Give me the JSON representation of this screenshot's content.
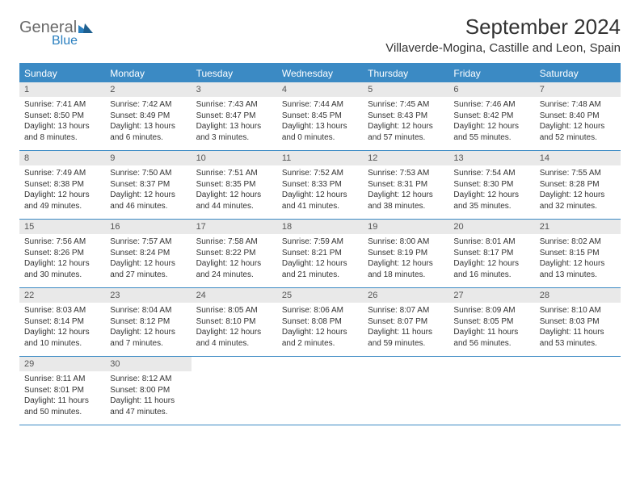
{
  "logo": {
    "text1": "General",
    "text2": "Blue"
  },
  "title": "September 2024",
  "location": "Villaverde-Mogina, Castille and Leon, Spain",
  "day_headers": [
    "Sunday",
    "Monday",
    "Tuesday",
    "Wednesday",
    "Thursday",
    "Friday",
    "Saturday"
  ],
  "colors": {
    "accent": "#3b8ac4",
    "header_text": "#ffffff",
    "daynum_bg": "#e9e9e9",
    "text": "#333333",
    "logo_gray": "#6a6a6a",
    "logo_blue": "#2a7fbf"
  },
  "weeks": [
    [
      {
        "n": "1",
        "sunrise": "Sunrise: 7:41 AM",
        "sunset": "Sunset: 8:50 PM",
        "d1": "Daylight: 13 hours",
        "d2": "and 8 minutes."
      },
      {
        "n": "2",
        "sunrise": "Sunrise: 7:42 AM",
        "sunset": "Sunset: 8:49 PM",
        "d1": "Daylight: 13 hours",
        "d2": "and 6 minutes."
      },
      {
        "n": "3",
        "sunrise": "Sunrise: 7:43 AM",
        "sunset": "Sunset: 8:47 PM",
        "d1": "Daylight: 13 hours",
        "d2": "and 3 minutes."
      },
      {
        "n": "4",
        "sunrise": "Sunrise: 7:44 AM",
        "sunset": "Sunset: 8:45 PM",
        "d1": "Daylight: 13 hours",
        "d2": "and 0 minutes."
      },
      {
        "n": "5",
        "sunrise": "Sunrise: 7:45 AM",
        "sunset": "Sunset: 8:43 PM",
        "d1": "Daylight: 12 hours",
        "d2": "and 57 minutes."
      },
      {
        "n": "6",
        "sunrise": "Sunrise: 7:46 AM",
        "sunset": "Sunset: 8:42 PM",
        "d1": "Daylight: 12 hours",
        "d2": "and 55 minutes."
      },
      {
        "n": "7",
        "sunrise": "Sunrise: 7:48 AM",
        "sunset": "Sunset: 8:40 PM",
        "d1": "Daylight: 12 hours",
        "d2": "and 52 minutes."
      }
    ],
    [
      {
        "n": "8",
        "sunrise": "Sunrise: 7:49 AM",
        "sunset": "Sunset: 8:38 PM",
        "d1": "Daylight: 12 hours",
        "d2": "and 49 minutes."
      },
      {
        "n": "9",
        "sunrise": "Sunrise: 7:50 AM",
        "sunset": "Sunset: 8:37 PM",
        "d1": "Daylight: 12 hours",
        "d2": "and 46 minutes."
      },
      {
        "n": "10",
        "sunrise": "Sunrise: 7:51 AM",
        "sunset": "Sunset: 8:35 PM",
        "d1": "Daylight: 12 hours",
        "d2": "and 44 minutes."
      },
      {
        "n": "11",
        "sunrise": "Sunrise: 7:52 AM",
        "sunset": "Sunset: 8:33 PM",
        "d1": "Daylight: 12 hours",
        "d2": "and 41 minutes."
      },
      {
        "n": "12",
        "sunrise": "Sunrise: 7:53 AM",
        "sunset": "Sunset: 8:31 PM",
        "d1": "Daylight: 12 hours",
        "d2": "and 38 minutes."
      },
      {
        "n": "13",
        "sunrise": "Sunrise: 7:54 AM",
        "sunset": "Sunset: 8:30 PM",
        "d1": "Daylight: 12 hours",
        "d2": "and 35 minutes."
      },
      {
        "n": "14",
        "sunrise": "Sunrise: 7:55 AM",
        "sunset": "Sunset: 8:28 PM",
        "d1": "Daylight: 12 hours",
        "d2": "and 32 minutes."
      }
    ],
    [
      {
        "n": "15",
        "sunrise": "Sunrise: 7:56 AM",
        "sunset": "Sunset: 8:26 PM",
        "d1": "Daylight: 12 hours",
        "d2": "and 30 minutes."
      },
      {
        "n": "16",
        "sunrise": "Sunrise: 7:57 AM",
        "sunset": "Sunset: 8:24 PM",
        "d1": "Daylight: 12 hours",
        "d2": "and 27 minutes."
      },
      {
        "n": "17",
        "sunrise": "Sunrise: 7:58 AM",
        "sunset": "Sunset: 8:22 PM",
        "d1": "Daylight: 12 hours",
        "d2": "and 24 minutes."
      },
      {
        "n": "18",
        "sunrise": "Sunrise: 7:59 AM",
        "sunset": "Sunset: 8:21 PM",
        "d1": "Daylight: 12 hours",
        "d2": "and 21 minutes."
      },
      {
        "n": "19",
        "sunrise": "Sunrise: 8:00 AM",
        "sunset": "Sunset: 8:19 PM",
        "d1": "Daylight: 12 hours",
        "d2": "and 18 minutes."
      },
      {
        "n": "20",
        "sunrise": "Sunrise: 8:01 AM",
        "sunset": "Sunset: 8:17 PM",
        "d1": "Daylight: 12 hours",
        "d2": "and 16 minutes."
      },
      {
        "n": "21",
        "sunrise": "Sunrise: 8:02 AM",
        "sunset": "Sunset: 8:15 PM",
        "d1": "Daylight: 12 hours",
        "d2": "and 13 minutes."
      }
    ],
    [
      {
        "n": "22",
        "sunrise": "Sunrise: 8:03 AM",
        "sunset": "Sunset: 8:14 PM",
        "d1": "Daylight: 12 hours",
        "d2": "and 10 minutes."
      },
      {
        "n": "23",
        "sunrise": "Sunrise: 8:04 AM",
        "sunset": "Sunset: 8:12 PM",
        "d1": "Daylight: 12 hours",
        "d2": "and 7 minutes."
      },
      {
        "n": "24",
        "sunrise": "Sunrise: 8:05 AM",
        "sunset": "Sunset: 8:10 PM",
        "d1": "Daylight: 12 hours",
        "d2": "and 4 minutes."
      },
      {
        "n": "25",
        "sunrise": "Sunrise: 8:06 AM",
        "sunset": "Sunset: 8:08 PM",
        "d1": "Daylight: 12 hours",
        "d2": "and 2 minutes."
      },
      {
        "n": "26",
        "sunrise": "Sunrise: 8:07 AM",
        "sunset": "Sunset: 8:07 PM",
        "d1": "Daylight: 11 hours",
        "d2": "and 59 minutes."
      },
      {
        "n": "27",
        "sunrise": "Sunrise: 8:09 AM",
        "sunset": "Sunset: 8:05 PM",
        "d1": "Daylight: 11 hours",
        "d2": "and 56 minutes."
      },
      {
        "n": "28",
        "sunrise": "Sunrise: 8:10 AM",
        "sunset": "Sunset: 8:03 PM",
        "d1": "Daylight: 11 hours",
        "d2": "and 53 minutes."
      }
    ],
    [
      {
        "n": "29",
        "sunrise": "Sunrise: 8:11 AM",
        "sunset": "Sunset: 8:01 PM",
        "d1": "Daylight: 11 hours",
        "d2": "and 50 minutes."
      },
      {
        "n": "30",
        "sunrise": "Sunrise: 8:12 AM",
        "sunset": "Sunset: 8:00 PM",
        "d1": "Daylight: 11 hours",
        "d2": "and 47 minutes."
      },
      null,
      null,
      null,
      null,
      null
    ]
  ]
}
